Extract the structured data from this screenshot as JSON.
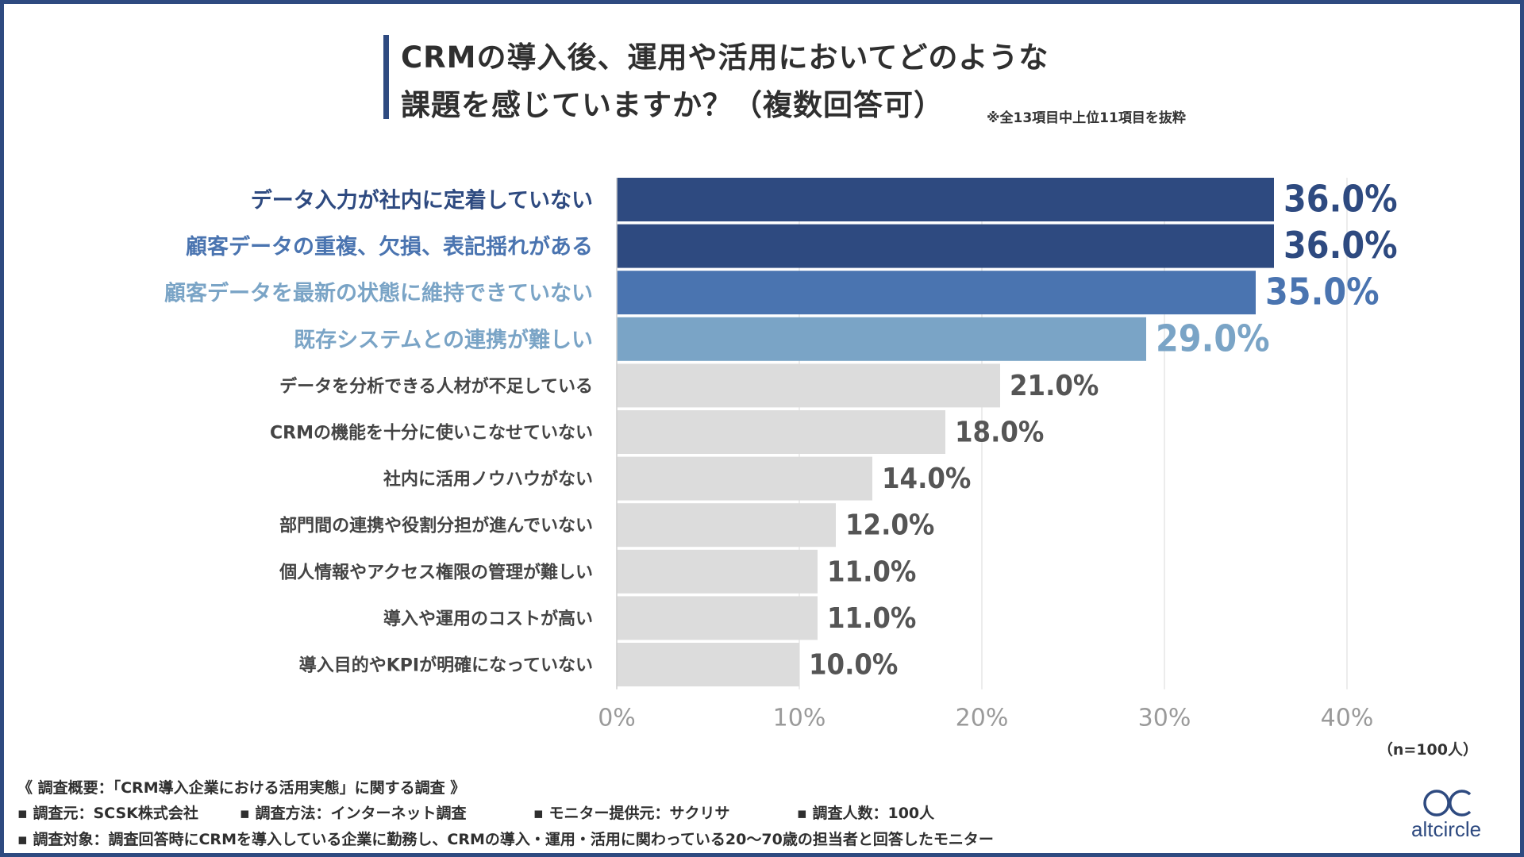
{
  "title": {
    "line1": "CRMの導入後、運用や活用においてどのような",
    "line2": "課題を感じていますか？（複数回答可）",
    "note": "※全13項目中上位11項目を抜粋"
  },
  "chart_data": {
    "type": "bar",
    "orientation": "horizontal",
    "categories": [
      "データ入力が社内に定着していない",
      "顧客データの重複、欠損、表記揺れがある",
      "顧客データを最新の状態に維持できていない",
      "既存システムとの連携が難しい",
      "データを分析できる人材が不足している",
      "CRMの機能を十分に使いこなせていない",
      "社内に活用ノウハウがない",
      "部門間の連携や役割分担が進んでいない",
      "個人情報やアクセス権限の管理が難しい",
      "導入や運用のコストが高い",
      "導入目的やKPIが明確になっていない"
    ],
    "values": [
      36.0,
      36.0,
      35.0,
      29.0,
      21.0,
      18.0,
      14.0,
      12.0,
      11.0,
      11.0,
      10.0
    ],
    "value_labels": [
      "36.0%",
      "36.0%",
      "35.0%",
      "29.0%",
      "21.0%",
      "18.0%",
      "14.0%",
      "12.0%",
      "11.0%",
      "11.0%",
      "10.0%"
    ],
    "bar_colors": [
      "#2e4a80",
      "#2e4a80",
      "#4a74b0",
      "#7aa4c6",
      "#dcdcdc",
      "#dcdcdc",
      "#dcdcdc",
      "#dcdcdc",
      "#dcdcdc",
      "#dcdcdc",
      "#dcdcdc"
    ],
    "label_colors": [
      "#2e4a80",
      "#4a74b0",
      "#7aa4c6",
      "#7aa4c6",
      "#444444",
      "#444444",
      "#444444",
      "#444444",
      "#444444",
      "#444444",
      "#444444"
    ],
    "value_colors": [
      "#2e4a80",
      "#2e4a80",
      "#4a74b0",
      "#7aa4c6",
      "#555555",
      "#555555",
      "#555555",
      "#555555",
      "#555555",
      "#555555",
      "#555555"
    ],
    "emphasized_count": 4,
    "xlim": [
      0,
      40
    ],
    "x_ticks": [
      0,
      10,
      20,
      30,
      40
    ],
    "x_tick_labels": [
      "0%",
      "10%",
      "20%",
      "30%",
      "40%"
    ],
    "grid": true
  },
  "sample_size": "（n=100人）",
  "footer": {
    "summary": "《 調査概要：「CRM導入企業における活用実態」に関する調査 》",
    "items": [
      "▪ 調査元：SCSK株式会社",
      "▪ 調査方法：インターネット調査",
      "▪ モニター提供元：サクリサ",
      "▪ 調査人数：100人"
    ],
    "target": "▪ 調査対象：調査回答時にCRMを導入している企業に勤務し、CRMの導入・運用・活用に関わっている20〜70歳の担当者と回答したモニター"
  },
  "logo": {
    "text": "altcircle",
    "color": "#2e4a80"
  }
}
